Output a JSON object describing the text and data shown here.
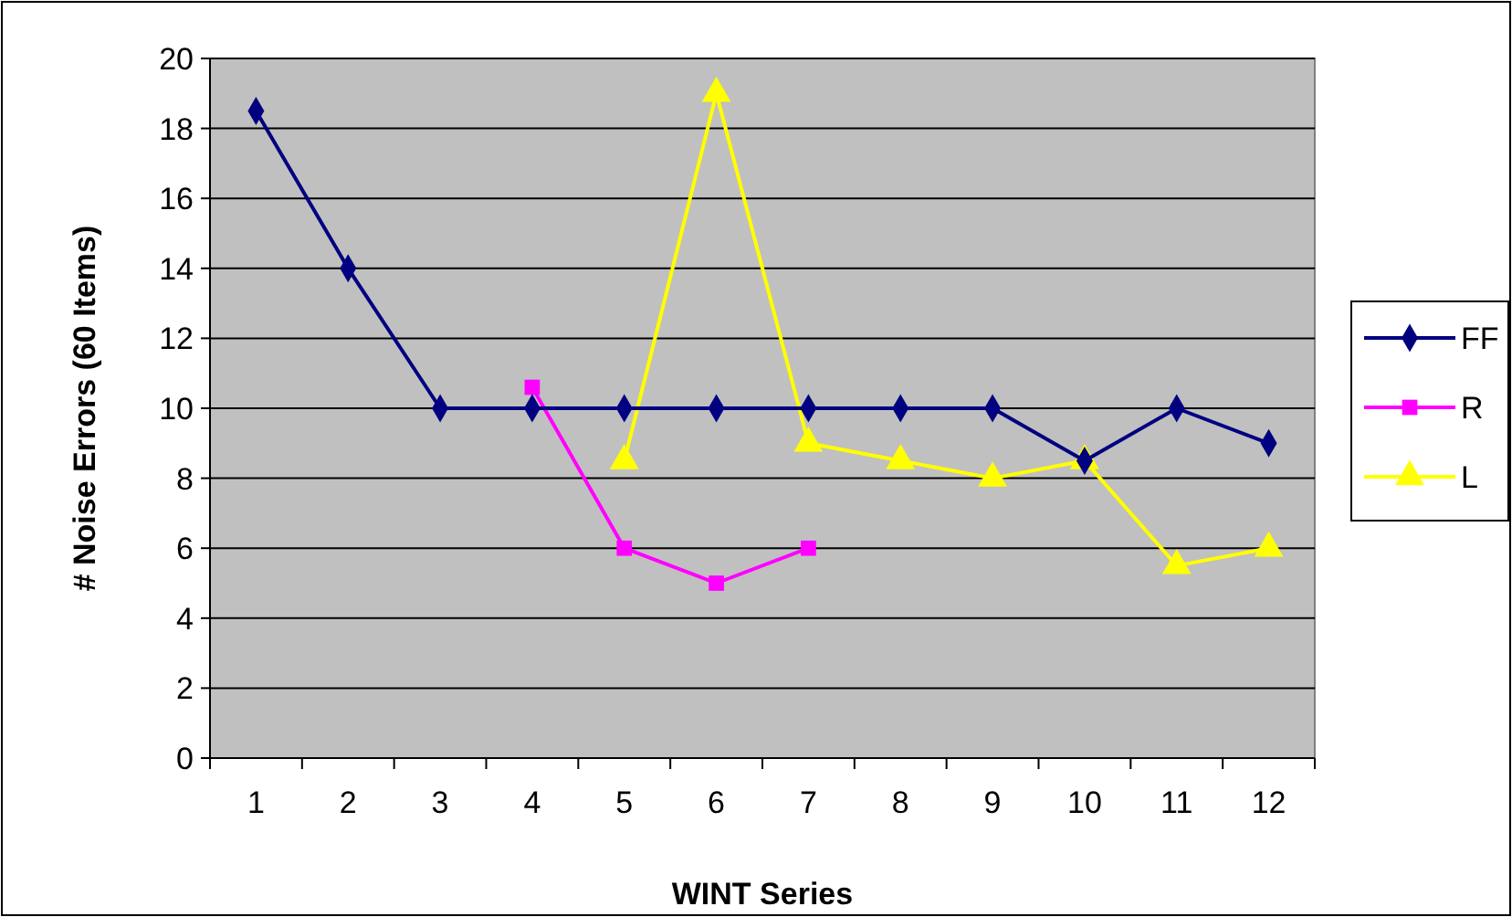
{
  "chart_data": {
    "type": "line",
    "xlabel": "WINT Series",
    "ylabel": "# Noise Errors (60 Items)",
    "categories": [
      "1",
      "2",
      "3",
      "4",
      "5",
      "6",
      "7",
      "8",
      "9",
      "10",
      "11",
      "12"
    ],
    "series": [
      {
        "name": "FF",
        "color": "#000080",
        "marker": "diamond",
        "values": [
          18.5,
          14,
          10,
          10,
          10,
          10,
          10,
          10,
          10,
          8.5,
          10,
          9
        ]
      },
      {
        "name": "R",
        "color": "#ff00ff",
        "marker": "square",
        "values": [
          null,
          null,
          null,
          10.6,
          6,
          5,
          6,
          null,
          null,
          null,
          null,
          null
        ]
      },
      {
        "name": "L",
        "color": "#ffff00",
        "marker": "triangle",
        "values": [
          null,
          null,
          null,
          null,
          8.5,
          19,
          9,
          8.5,
          8,
          8.5,
          5.5,
          6
        ]
      }
    ],
    "ylim": [
      0,
      20
    ],
    "yticks": [
      0,
      2,
      4,
      6,
      8,
      10,
      12,
      14,
      16,
      18,
      20
    ],
    "grid": "y",
    "legend": "right"
  }
}
